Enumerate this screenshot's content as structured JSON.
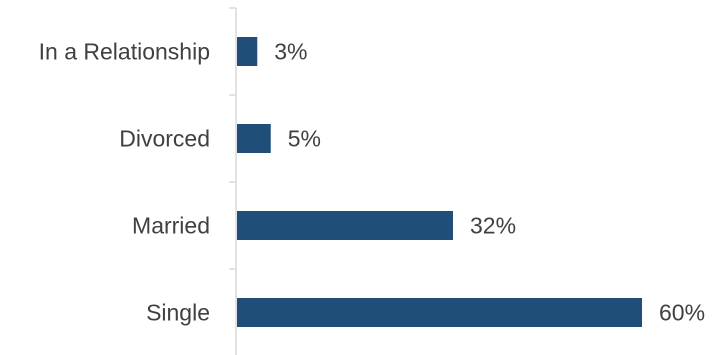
{
  "chart_data": {
    "type": "bar",
    "orientation": "horizontal",
    "categories": [
      "In a Relationship",
      "Divorced",
      "Married",
      "Single"
    ],
    "values": [
      3,
      5,
      32,
      60
    ],
    "value_labels": [
      "3%",
      "5%",
      "32%",
      "60%"
    ],
    "unit": "%",
    "xlim": [
      0,
      60
    ],
    "grid": false,
    "legend": "none",
    "bar_color": "#1f4e79",
    "axis_color": "#d9d9d9",
    "text_color": "#404040"
  }
}
